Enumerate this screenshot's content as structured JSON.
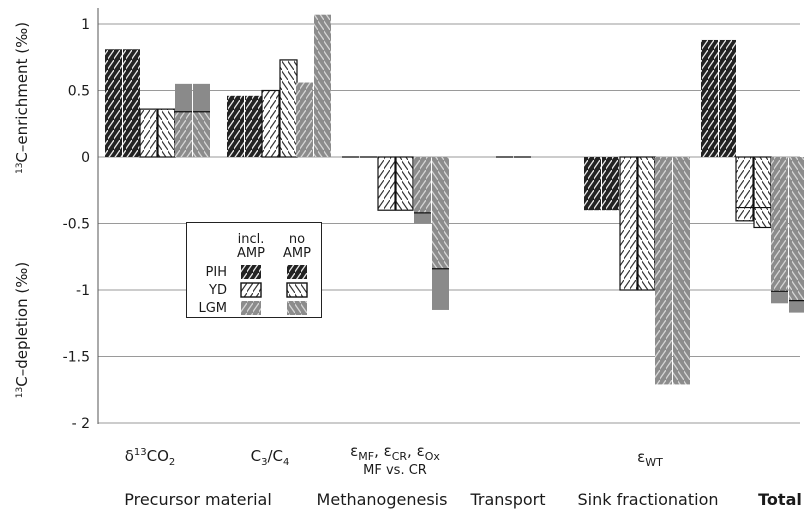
{
  "chart_data": {
    "type": "bar",
    "ylim": [
      -2,
      1.1
    ],
    "yticks": [
      1,
      0.5,
      0,
      -0.5,
      -1,
      -1.5,
      -2
    ],
    "ytick_labels": [
      "1",
      "0.5",
      "0",
      "-0.5",
      "-1",
      "-1.5",
      "- 2"
    ],
    "ylabel_top": "C–enrichment (‰)",
    "ylabel_bottom": "C–depletion (‰)",
    "ylabel_sup": "13",
    "grid": true,
    "legend": {
      "col_headers": [
        [
          "incl.",
          "AMP"
        ],
        [
          "no",
          "AMP"
        ]
      ],
      "rows": [
        "PIH",
        "YD",
        "LGM"
      ]
    },
    "periods": [
      {
        "name": "PIH",
        "color": "#222222",
        "pattern": "dark"
      },
      {
        "name": "YD",
        "color": "#ffffff",
        "pattern": "white"
      },
      {
        "name": "LGM",
        "color": "#8c8c8c",
        "pattern": "gray"
      }
    ],
    "groups": [
      {
        "key": "d13co2",
        "label_pre": "δ",
        "label_sup": "13",
        "label_main": "CO",
        "label_sub": "2",
        "bars": [
          {
            "period": "PIH",
            "incl": 0.81,
            "no": 0.81
          },
          {
            "period": "YD",
            "incl": 0.36,
            "no": 0.36
          },
          {
            "period": "LGM",
            "incl": 0.55,
            "no": 0.55,
            "incl_line": 0.34,
            "no_line": 0.34
          }
        ]
      },
      {
        "key": "c3c4",
        "label_text": "C3/C4",
        "bars": [
          {
            "period": "PIH",
            "incl": 0.46,
            "no": 0.46
          },
          {
            "period": "YD",
            "incl": 0.5,
            "no": 0.73
          },
          {
            "period": "LGM",
            "incl": 0.56,
            "no": 1.07
          }
        ]
      },
      {
        "key": "eps_mf",
        "label_line1": "εMF, εCR, εOx",
        "label_line2": "MF vs. CR",
        "bars": [
          {
            "period": "PIH",
            "incl": 0.0,
            "no": 0.0
          },
          {
            "period": "YD",
            "incl": -0.4,
            "no": -0.4
          },
          {
            "period": "LGM",
            "incl": -0.5,
            "no": -1.15,
            "incl_line": -0.42,
            "no_line": -0.84
          }
        ]
      },
      {
        "key": "transport",
        "bars": [
          {
            "period": "PIH",
            "incl": 0.0,
            "no": 0.0
          }
        ]
      },
      {
        "key": "eps_wt",
        "label_text": "εWT",
        "bars": [
          {
            "period": "PIH",
            "incl": -0.4,
            "no": -0.4
          },
          {
            "period": "YD",
            "incl": -1.0,
            "no": -1.0
          },
          {
            "period": "LGM",
            "incl": -1.71,
            "no": -1.71
          }
        ]
      },
      {
        "key": "total",
        "bars": [
          {
            "period": "PIH",
            "incl": 0.88,
            "no": 0.88
          },
          {
            "period": "YD",
            "incl": -0.48,
            "no": -0.53,
            "incl_line": -0.38,
            "no_line": -0.38
          },
          {
            "period": "LGM",
            "incl": -1.1,
            "no": -1.17,
            "incl_line": -1.01,
            "no_line": -1.08
          }
        ]
      }
    ],
    "categories": [
      "Precursor material",
      "Methanogenesis",
      "Transport",
      "Sink fractionation",
      "Total"
    ]
  }
}
